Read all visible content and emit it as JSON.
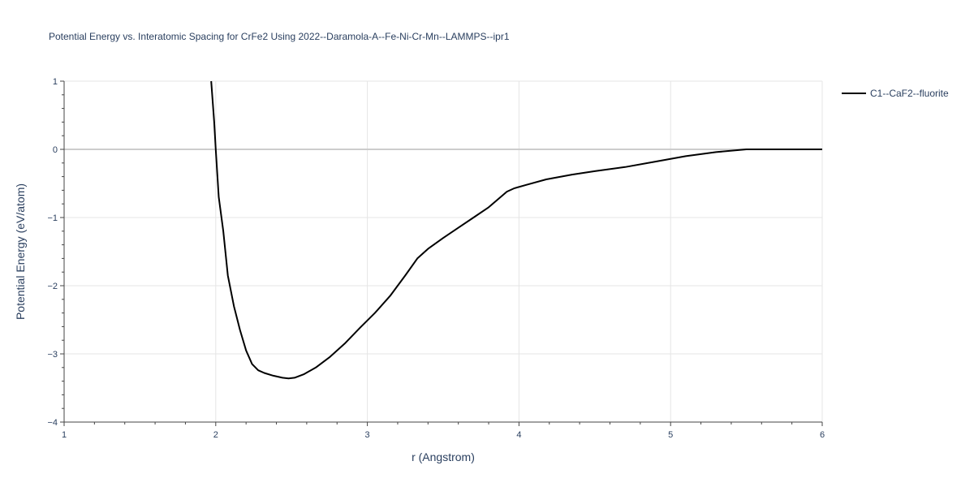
{
  "chart_data": {
    "type": "line",
    "title": "Potential Energy vs. Interatomic Spacing for CrFe2 Using 2022--Daramola-A--Fe-Ni-Cr-Mn--LAMMPS--ipr1",
    "xlabel": "r (Angstrom)",
    "ylabel": "Potential Energy (eV/atom)",
    "xlim": [
      1,
      6
    ],
    "ylim": [
      -4,
      1
    ],
    "x_ticks": [
      1,
      2,
      3,
      4,
      5,
      6
    ],
    "x_tick_labels": [
      "1",
      "2",
      "3",
      "4",
      "5",
      "6"
    ],
    "y_ticks": [
      1,
      0,
      -1,
      -2,
      -3,
      -4
    ],
    "y_tick_labels": [
      "1",
      "0",
      "−1",
      "−2",
      "−3",
      "−4"
    ],
    "grid": true,
    "legend_position": "top-right",
    "series": [
      {
        "name": "C1--CaF2--fluorite",
        "color": "#000000",
        "x": [
          1.97,
          1.99,
          2.0,
          2.02,
          2.05,
          2.08,
          2.12,
          2.16,
          2.2,
          2.24,
          2.28,
          2.32,
          2.38,
          2.44,
          2.48,
          2.52,
          2.58,
          2.66,
          2.75,
          2.85,
          2.95,
          3.05,
          3.15,
          3.25,
          3.33,
          3.4,
          3.5,
          3.6,
          3.7,
          3.8,
          3.92,
          3.97,
          4.05,
          4.18,
          4.35,
          4.5,
          4.7,
          4.9,
          5.1,
          5.3,
          5.5,
          5.7,
          5.9,
          6.0
        ],
        "y": [
          1.0,
          0.4,
          0.0,
          -0.7,
          -1.2,
          -1.85,
          -2.3,
          -2.65,
          -2.95,
          -3.15,
          -3.24,
          -3.28,
          -3.32,
          -3.35,
          -3.36,
          -3.35,
          -3.3,
          -3.2,
          -3.05,
          -2.85,
          -2.62,
          -2.4,
          -2.15,
          -1.85,
          -1.6,
          -1.46,
          -1.3,
          -1.15,
          -1.0,
          -0.85,
          -0.62,
          -0.57,
          -0.52,
          -0.44,
          -0.37,
          -0.32,
          -0.26,
          -0.18,
          -0.1,
          -0.04,
          0.0,
          0.0,
          0.0,
          0.0
        ]
      }
    ]
  }
}
